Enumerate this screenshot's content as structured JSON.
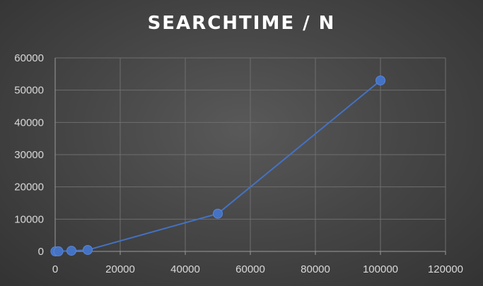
{
  "chart_data": {
    "type": "scatter",
    "title": "SEARCHTIME / N",
    "xlabel": "",
    "ylabel": "",
    "xlim": [
      0,
      120000
    ],
    "ylim": [
      0,
      60000
    ],
    "x_ticks": [
      0,
      20000,
      40000,
      60000,
      80000,
      100000,
      120000
    ],
    "y_ticks": [
      0,
      10000,
      20000,
      30000,
      40000,
      50000,
      60000
    ],
    "x_tick_labels": [
      "0",
      "20000",
      "40000",
      "60000",
      "80000",
      "100000",
      "120000"
    ],
    "y_tick_labels": [
      "0",
      "10000",
      "20000",
      "30000",
      "40000",
      "50000",
      "60000"
    ],
    "grid": true,
    "legend": "none",
    "lines": "straight-with-markers",
    "series": [
      {
        "color": "#4472c4",
        "x": [
          100,
          1000,
          5000,
          10000,
          50000,
          100000
        ],
        "y": [
          1,
          20,
          200,
          450,
          11700,
          53000
        ]
      }
    ]
  }
}
